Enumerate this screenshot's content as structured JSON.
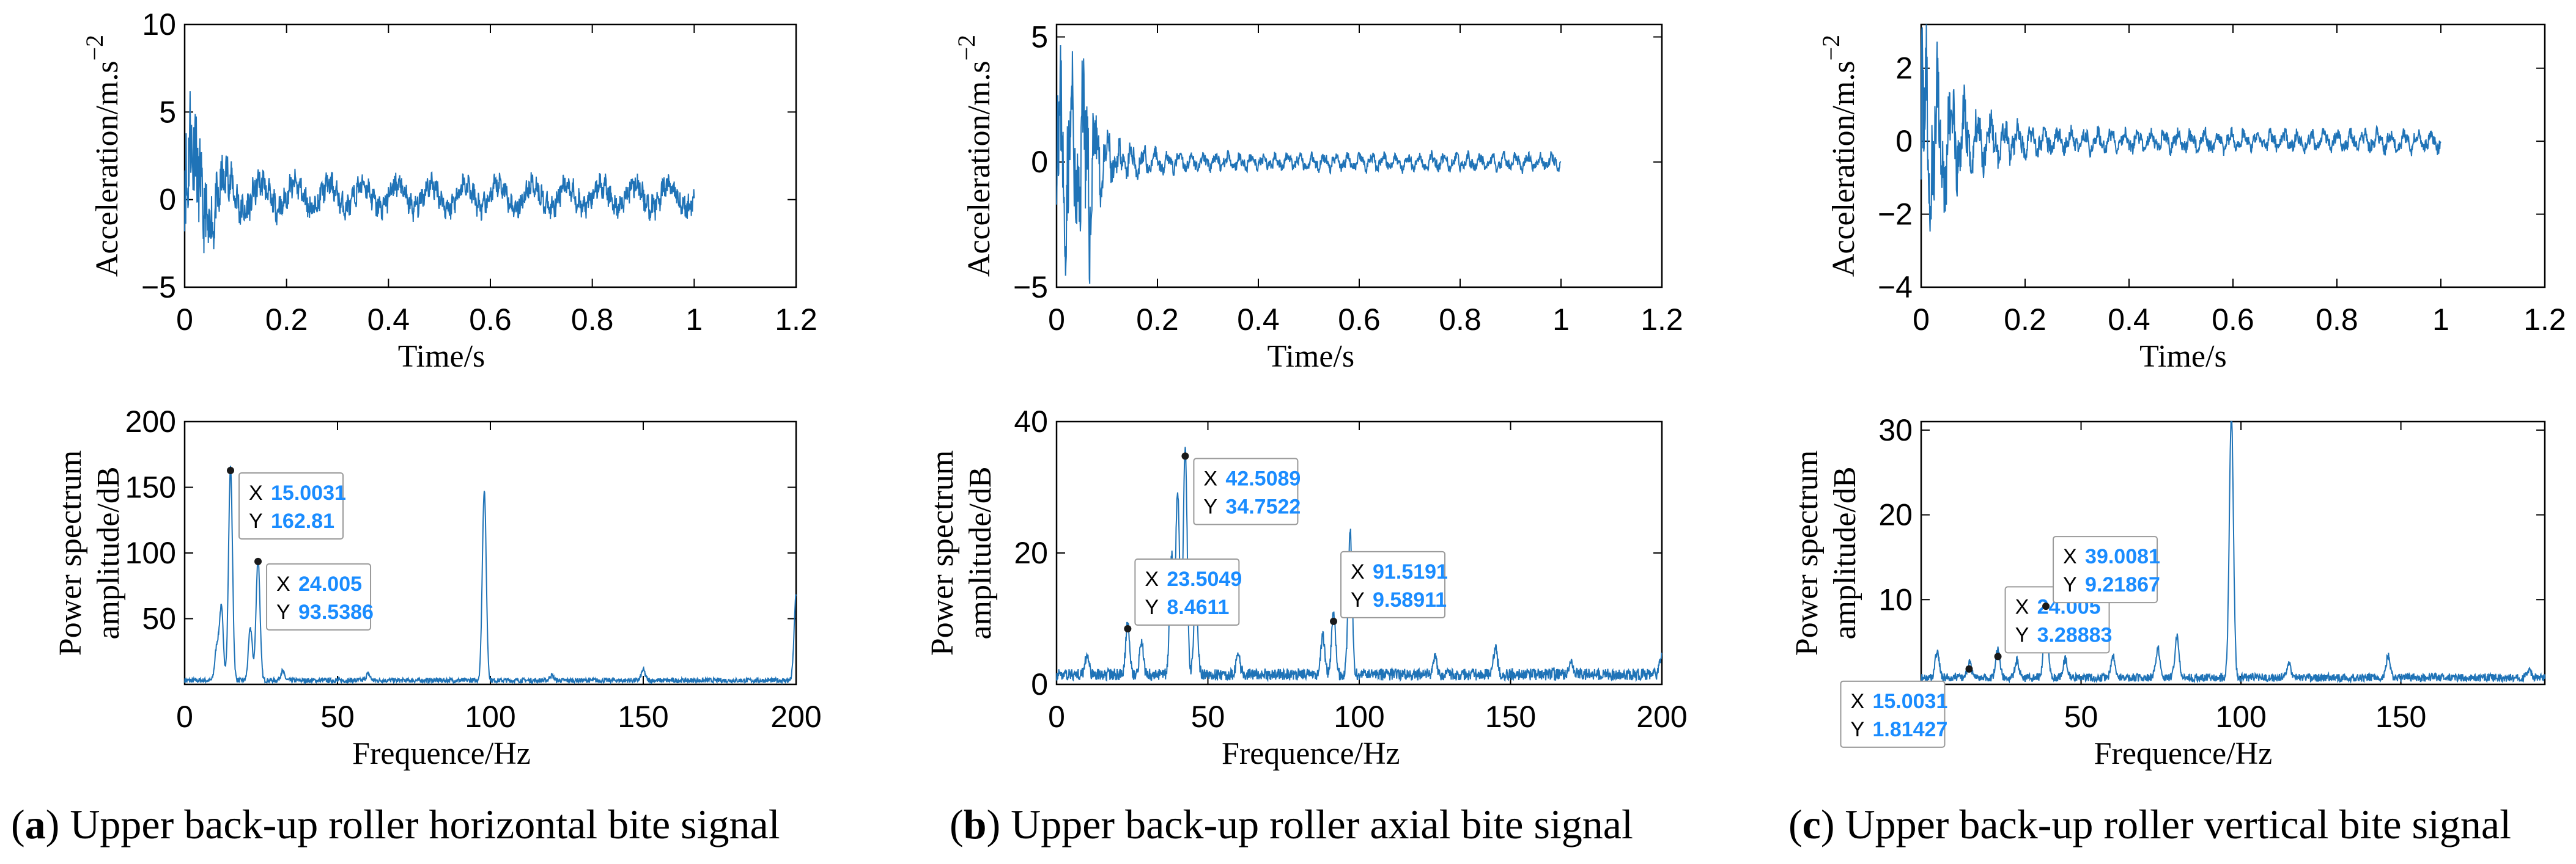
{
  "panels": [
    {
      "id": "a",
      "caption": {
        "label": "a",
        "text": " Upper back-up roller horizontal bite signal"
      },
      "time_chart": {
        "type": "line",
        "xlabel": "Time/s",
        "ylabel": "Acceleration/m.s",
        "ylabel_sup": "−2",
        "xlim": [
          0,
          1.2
        ],
        "ylim": [
          -5,
          10
        ],
        "xticks": [
          "0",
          "0.2",
          "0.4",
          "0.6",
          "0.8",
          "1",
          "1.2"
        ],
        "yticks": [
          "−5",
          "0",
          "5",
          "10"
        ],
        "yticks_values": [
          -5,
          0,
          5,
          10
        ],
        "signal": {
          "duration": 1.0,
          "initial_amplitude": 6.5,
          "steady_amplitude": 1.1,
          "decay": 22,
          "osc_freq": 15,
          "seed": 11,
          "bias": 0.2
        }
      },
      "spectrum_chart": {
        "type": "line",
        "xlabel": "Frequence/Hz",
        "ylabel_line1": "Power spectrum",
        "ylabel_line2": "amplitude/dB",
        "xlim": [
          0,
          200
        ],
        "ylim": [
          0,
          200
        ],
        "xticks": [
          "0",
          "50",
          "100",
          "150",
          "200"
        ],
        "xticks_values": [
          0,
          50,
          100,
          150,
          200
        ],
        "yticks": [
          "50",
          "100",
          "150",
          "200"
        ],
        "yticks_values": [
          50,
          100,
          150,
          200
        ],
        "baseline": 3,
        "peaks": [
          [
            15.0,
            162.8
          ],
          [
            24.0,
            93.5
          ],
          [
            12.0,
            55
          ],
          [
            10.5,
            25
          ],
          [
            21.5,
            40
          ],
          [
            98,
            145
          ],
          [
            150,
            8
          ],
          [
            200,
            65
          ],
          [
            32,
            7
          ],
          [
            60,
            5
          ],
          [
            120,
            4
          ]
        ],
        "datatips": [
          {
            "X": "15.0031",
            "Y": "162.81",
            "x": 15.0031,
            "y": 162.81,
            "dir": "right"
          },
          {
            "X": "24.005",
            "Y": "93.5386",
            "x": 24.005,
            "y": 93.5386,
            "dir": "right"
          }
        ]
      }
    },
    {
      "id": "b",
      "caption": {
        "label": "b",
        "text": " Upper back-up roller axial bite signal"
      },
      "time_chart": {
        "type": "line",
        "xlabel": "Time/s",
        "ylabel": "Acceleration/m.s",
        "ylabel_sup": "−2",
        "xlim": [
          0,
          1.2
        ],
        "ylim": [
          -5,
          5.5
        ],
        "xticks": [
          "0",
          "0.2",
          "0.4",
          "0.6",
          "0.8",
          "1",
          "1.2"
        ],
        "yticks": [
          "−5",
          "0",
          "5"
        ],
        "yticks_values": [
          -5,
          0,
          5
        ],
        "signal": {
          "duration": 1.0,
          "initial_amplitude": 5.5,
          "steady_amplitude": 0.35,
          "decay": 18,
          "osc_freq": 42,
          "seed": 23,
          "bias": 0.0,
          "burst_at": 0.06
        }
      },
      "spectrum_chart": {
        "type": "line",
        "xlabel": "Frequence/Hz",
        "ylabel_line1": "Power spectrum",
        "ylabel_line2": "amplitude/dB",
        "xlim": [
          0,
          200
        ],
        "ylim": [
          0,
          40
        ],
        "xticks": [
          "0",
          "50",
          "100",
          "150",
          "200"
        ],
        "xticks_values": [
          0,
          50,
          100,
          150,
          200
        ],
        "yticks": [
          "0",
          "20",
          "40"
        ],
        "yticks_values": [
          0,
          20,
          40
        ],
        "baseline": 1.5,
        "peaks": [
          [
            23.5,
            8.46
          ],
          [
            42.5,
            34.75
          ],
          [
            40,
            28
          ],
          [
            46,
            12
          ],
          [
            38,
            18
          ],
          [
            91.5,
            9.59
          ],
          [
            97,
            22
          ],
          [
            88,
            6
          ],
          [
            28,
            5
          ],
          [
            10,
            3
          ],
          [
            60,
            3
          ],
          [
            145,
            4
          ],
          [
            125,
            2.5
          ],
          [
            170,
            2
          ],
          [
            200,
            3
          ]
        ],
        "datatips": [
          {
            "X": "42.5089",
            "Y": "34.7522",
            "x": 42.5089,
            "y": 34.7522,
            "dir": "right"
          },
          {
            "X": "23.5049",
            "Y": "8.4611",
            "x": 23.5049,
            "y": 8.4611,
            "dir": "right-up"
          },
          {
            "X": "91.5191",
            "Y": "9.58911",
            "x": 91.5191,
            "y": 9.58911,
            "dir": "right-up"
          }
        ]
      }
    },
    {
      "id": "c",
      "caption": {
        "label": "c",
        "text": " Upper back-up roller vertical bite signal"
      },
      "time_chart": {
        "type": "line",
        "xlabel": "Time/s",
        "ylabel": "Acceleration/m.s",
        "ylabel_sup": "−2",
        "xlim": [
          0,
          1.2
        ],
        "ylim": [
          -4,
          3.2
        ],
        "xticks": [
          "0",
          "0.2",
          "0.4",
          "0.6",
          "0.8",
          "1",
          "1.2"
        ],
        "yticks": [
          "−4",
          "−2",
          "0",
          "2"
        ],
        "yticks_values": [
          -4,
          -2,
          0,
          2
        ],
        "signal": {
          "duration": 1.0,
          "initial_amplitude": 3.4,
          "steady_amplitude": 0.3,
          "decay": 15,
          "osc_freq": 39,
          "seed": 37,
          "bias": 0.0
        }
      },
      "spectrum_chart": {
        "type": "line",
        "xlabel": "Frequence/Hz",
        "ylabel_line1": "Power spectrum",
        "ylabel_line2": "amplitude/dB",
        "xlim": [
          0,
          195
        ],
        "ylim": [
          0,
          31
        ],
        "xticks": [
          "0",
          "50",
          "100",
          "150"
        ],
        "xticks_values": [
          0,
          50,
          100,
          150
        ],
        "yticks": [
          "10",
          "20",
          "30"
        ],
        "yticks_values": [
          10,
          20,
          30
        ],
        "baseline": 0.8,
        "peaks": [
          [
            15.0,
            1.81
          ],
          [
            24.0,
            3.29
          ],
          [
            39.0,
            9.22
          ],
          [
            97,
            31
          ],
          [
            80,
            5
          ],
          [
            74,
            3.5
          ],
          [
            146,
            2.5
          ],
          [
            60,
            2.5
          ],
          [
            30,
            2
          ],
          [
            5,
            3
          ],
          [
            45,
            2.2
          ],
          [
            115,
            1.5
          ],
          [
            190,
            1
          ]
        ],
        "datatips": [
          {
            "X": "15.0031",
            "Y": "1.81427",
            "x": 15.0031,
            "y": 1.81427,
            "dir": "left-down"
          },
          {
            "X": "24.005",
            "Y": "3.28883",
            "x": 24.005,
            "y": 3.28883,
            "dir": "right-up"
          },
          {
            "X": "39.0081",
            "Y": "9.21867",
            "x": 39.0081,
            "y": 9.21867,
            "dir": "right-up"
          }
        ]
      }
    }
  ],
  "style": {
    "line_color": "#1f73b7",
    "tip_value_color": "#1a8cff",
    "axis_color": "#000000"
  }
}
